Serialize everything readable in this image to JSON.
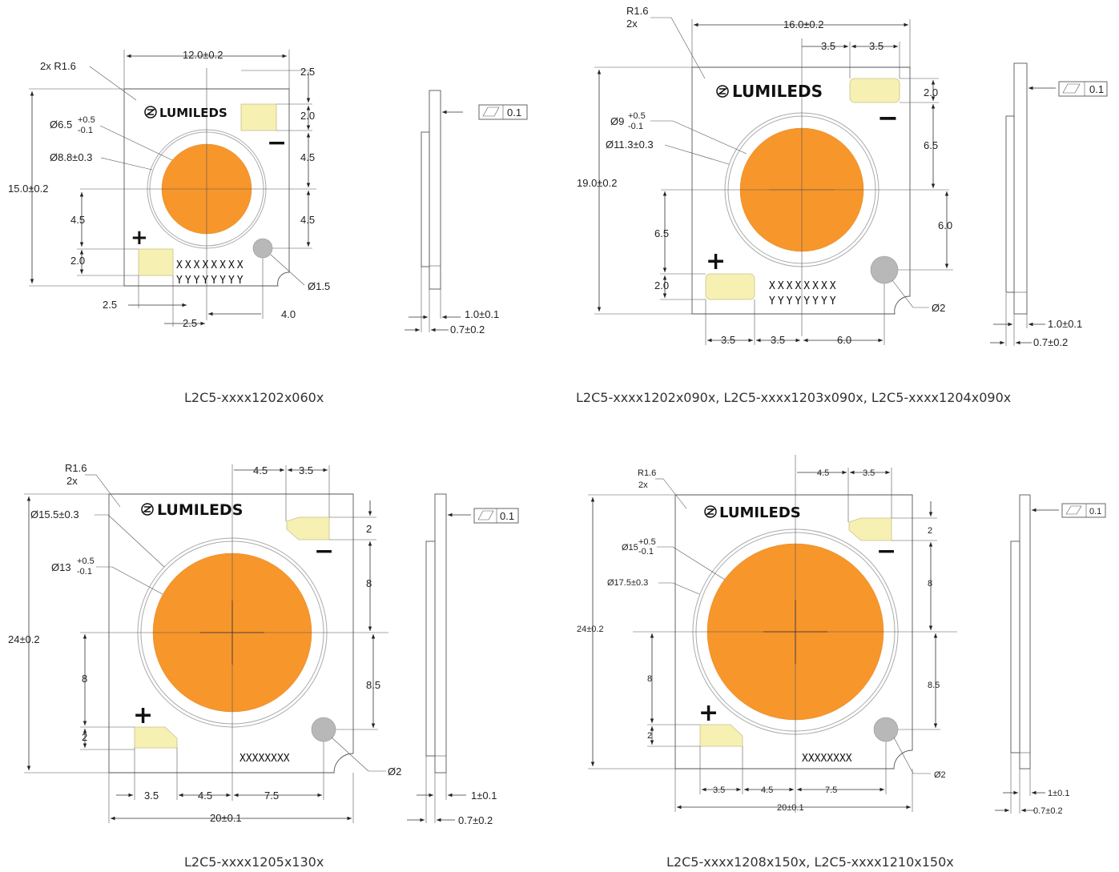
{
  "colors": {
    "les": "#F7962B",
    "pad": "#F6F0B3",
    "hole": "#B8B8B8"
  },
  "brand": "LUMILEDS",
  "icons": [
    "lumileds-logo-icon",
    "flatness-icon",
    "datum-arrow-icon"
  ],
  "flatness_value": "0.1",
  "plus": "+",
  "minus": "−",
  "drawings": {
    "d1": {
      "caption": "L2C5-xxxx1202x060x",
      "width": "12.0±0.2",
      "height": "15.0±0.2",
      "radius": "2x R1.6",
      "les_dia": "Ø6.5",
      "les_tol_hi": "+0.5",
      "les_tol_lo": "-0.1",
      "ring_dia": "Ø8.8±0.3",
      "pad_h_top": "2.5",
      "pad_h": "2.0",
      "top_gap": "4.5",
      "bot_gap": "4.5",
      "left_gap": "4.5",
      "left_pad": "2.0",
      "hole": "Ø1.5",
      "b1": "2.5",
      "b2": "2.5",
      "b3": "4.0",
      "mark1": "XXXXXXXX",
      "mark2": "YYYYYYYY",
      "side_thk": "1.0±0.1",
      "side_sub": "0.7±0.2"
    },
    "d2": {
      "caption": "L2C5-xxxx1202x090x, L2C5-xxxx1203x090x, L2C5-xxxx1204x090x",
      "width": "16.0±0.2",
      "height": "19.0±0.2",
      "radius": "R1.6",
      "radius_n": "2x",
      "les_dia": "Ø9",
      "les_tol_hi": "+0.5",
      "les_tol_lo": "-0.1",
      "ring_dia": "Ø11.3±0.3",
      "t1": "3.5",
      "t2": "3.5",
      "pad_h": "2.0",
      "r1": "6.5",
      "r2": "6.0",
      "left_gap": "6.5",
      "left_pad": "2.0",
      "hole": "Ø2",
      "b1": "3.5",
      "b2": "3.5",
      "b3": "6.0",
      "mark1": "XXXXXXXX",
      "mark2": "YYYYYYYY",
      "side_thk": "1.0±0.1",
      "side_sub": "0.7±0.2"
    },
    "d3": {
      "caption": "L2C5-xxxx1205x130x",
      "width": "20±0.1",
      "height": "24±0.2",
      "radius": "R1.6",
      "radius_n": "2x",
      "ring_dia": "Ø15.5±0.3",
      "les_dia": "Ø13",
      "les_tol_hi": "+0.5",
      "les_tol_lo": "-0.1",
      "t1": "4.5",
      "t2": "3.5",
      "r0": "2",
      "r1": "8",
      "r2": "8.5",
      "left_gap": "8",
      "left_pad": "2",
      "hole": "Ø2",
      "b1": "3.5",
      "b2": "4.5",
      "b3": "7.5",
      "mark1": "XXXXXXXX",
      "side_thk": "1±0.1",
      "side_sub": "0.7±0.2"
    },
    "d4": {
      "caption": "L2C5-xxxx1208x150x, L2C5-xxxx1210x150x",
      "width": "20±0.1",
      "height": "24±0.2",
      "radius": "R1.6",
      "radius_n": "2x",
      "les_dia": "Ø15",
      "les_tol_hi": "+0.5",
      "les_tol_lo": "-0.1",
      "ring_dia": "Ø17.5±0.3",
      "t1": "4.5",
      "t2": "3.5",
      "r0": "2",
      "r1": "8",
      "r2": "8.5",
      "left_gap": "8",
      "left_pad": "2",
      "hole": "Ø2",
      "b1": "3.5",
      "b2": "4.5",
      "b3": "7.5",
      "mark1": "XXXXXXXX",
      "side_thk": "1±0.1",
      "side_sub": "0.7±0.2"
    }
  }
}
